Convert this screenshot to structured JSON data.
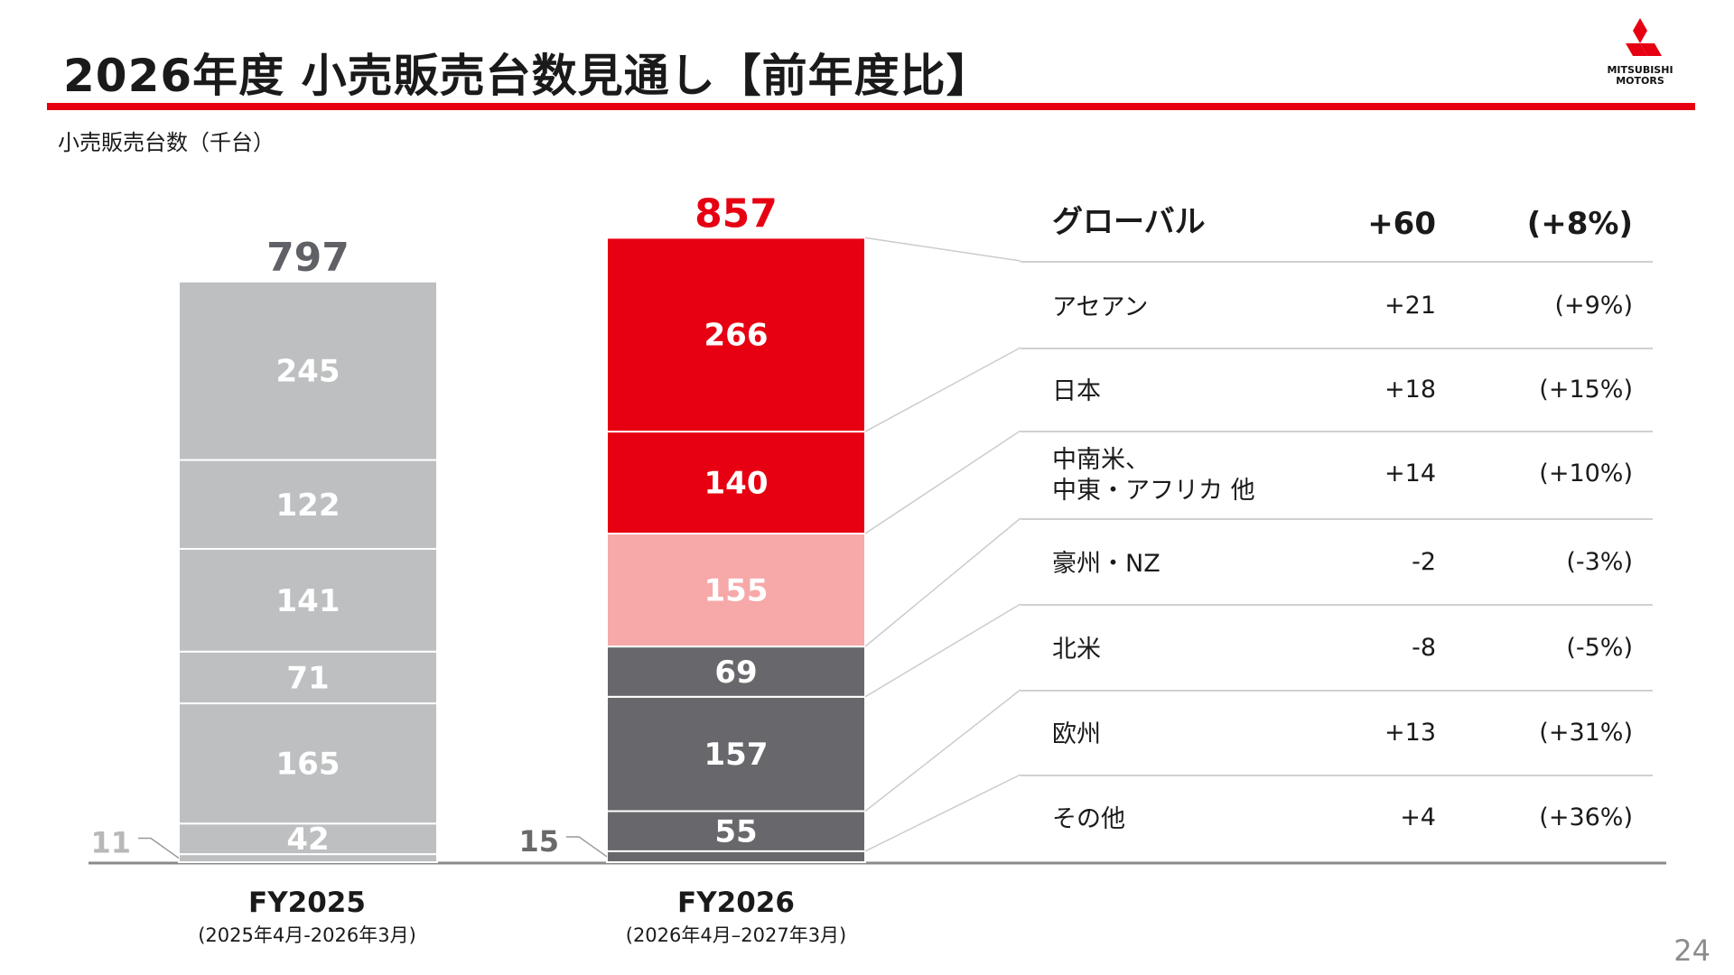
{
  "header": {
    "title": "2026年度 小売販売台数見通し【前年度比】",
    "logo_text_line1": "MITSUBISHI",
    "logo_text_line2": "MOTORS",
    "unit_label": "小売販売台数（千台）",
    "page_number": "24"
  },
  "colors": {
    "brand_red": "#e60012",
    "fy2025_grey": "#bdbfc1",
    "fy2026_pink": "#f7a8a8",
    "fy2026_dark": "#68686c",
    "total_fy2025": "#5f6166"
  },
  "chart_data": {
    "type": "bar",
    "stacked": true,
    "categories": [
      "FY2025",
      "FY2026"
    ],
    "category_sublabels": [
      "(2025年4月-2026年3月)",
      "(2026年4月–2027年3月)"
    ],
    "totals": [
      797,
      857
    ],
    "stack_order_top_to_bottom": [
      "アセアン",
      "日本",
      "中南米、中東・アフリカ 他",
      "豪州・NZ",
      "北米",
      "欧州",
      "その他"
    ],
    "segment_values": [
      [
        245,
        122,
        141,
        71,
        165,
        42,
        11
      ],
      [
        266,
        140,
        155,
        69,
        157,
        55,
        15
      ]
    ]
  },
  "table": {
    "header": {
      "label": "グローバル",
      "diff": "+60",
      "pct": "(+8%)"
    },
    "rows": [
      {
        "label": "アセアン",
        "diff": "+21",
        "pct": "(+9%)"
      },
      {
        "label": "日本",
        "diff": "+18",
        "pct": "(+15%)"
      },
      {
        "label_line1": "中南米、",
        "label_line2": "中東・アフリカ 他",
        "diff": "+14",
        "pct": "(+10%)"
      },
      {
        "label": "豪州・NZ",
        "diff": "-2",
        "pct": "(-3%)"
      },
      {
        "label": "北米",
        "diff": "-8",
        "pct": "(-5%)"
      },
      {
        "label": "欧州",
        "diff": "+13",
        "pct": "(+31%)"
      },
      {
        "label": "その他",
        "diff": "+4",
        "pct": "(+36%)"
      }
    ]
  }
}
